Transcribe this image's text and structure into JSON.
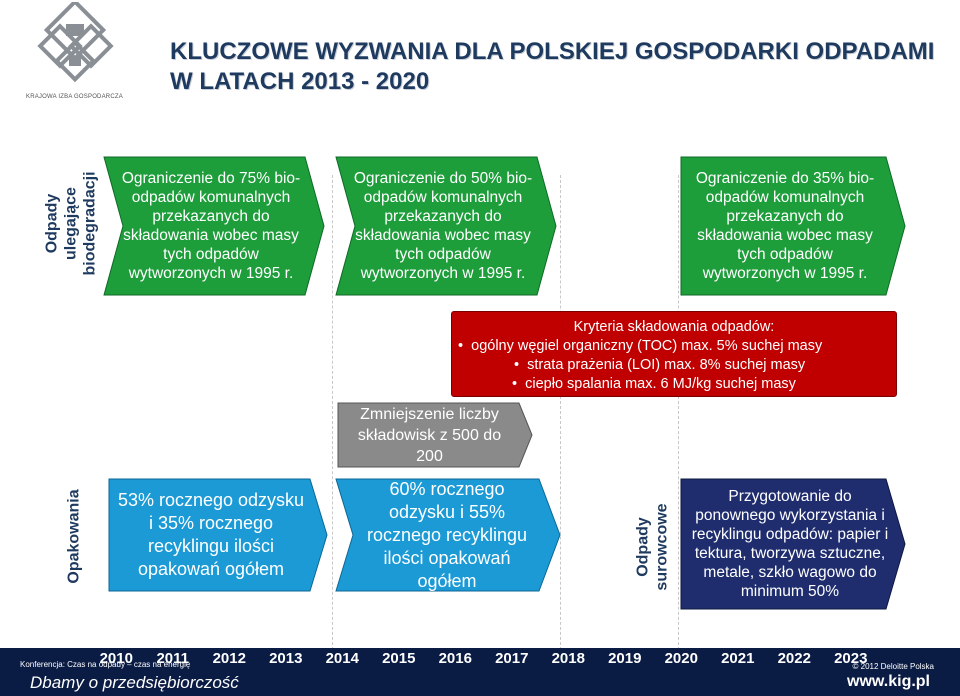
{
  "logo": {
    "org_name": "KRAJOWA IZBA GOSPODARCZA"
  },
  "title": {
    "line1": "KLUCZOWE WYZWANIA DLA POLSKIEJ GOSPODARKI ODPADAMI",
    "line2": "W LATACH 2013 - 2020"
  },
  "row_labels": {
    "biodegradable": "Odpady ulegające biodegradacji",
    "packaging": "Opakowania",
    "raw": "Odpady surowcowe"
  },
  "green_arrows": [
    "Ograniczenie do 75% bio-odpadów komunalnych przekazanych do składowania wobec masy tych odpadów wytworzonych w 1995 r.",
    "Ograniczenie do 50% bio-odpadów komunalnych przekazanych do składowania wobec masy tych odpadów wytworzonych w 1995 r.",
    "Ograniczenie do 35% bio-odpadów komunalnych przekazanych do składowania wobec masy tych odpadów wytworzonych w 1995 r."
  ],
  "landfill_criteria": {
    "title": "Kryteria składowania odpadów:",
    "items": [
      "ogólny węgiel organiczny (TOC) max. 5%  suchej masy",
      "strata prażenia (LOI) max. 8% suchej masy",
      "ciepło spalania max. 6 MJ/kg suchej masy"
    ]
  },
  "landfill_reduction": "Zmniejszenie liczby składowisk z 500 do 200",
  "blue_arrows": [
    "53% rocznego odzysku i 35% rocznego recyklingu ilości opakowań ogółem",
    "60% rocznego odzysku i 55% rocznego recyklingu ilości opakowań ogółem"
  ],
  "navy_arrow": "Przygotowanie do ponownego wykorzystania i recyklingu odpadów: papier i tektura, tworzywa sztuczne, metale, szkło wagowo do minimum 50%",
  "timeline": [
    "2010",
    "2011",
    "2012",
    "2013",
    "2014",
    "2015",
    "2016",
    "2017",
    "2018",
    "2019",
    "2020",
    "2021",
    "2022",
    "2023"
  ],
  "footer": {
    "conference": "Konferencja: Czas na odpady – czas na energię",
    "copyright": "© 2012 Deloitte Polska",
    "tagline": "Dbamy o przedsiębiorczość",
    "website": "www.kig.pl"
  },
  "colors": {
    "green": "#1e9d3b",
    "blue": "#1b9ad6",
    "navy": "#1f2d6e",
    "red": "#c00000",
    "gray": "#8a8a8a",
    "title": "#1f3a5f"
  }
}
